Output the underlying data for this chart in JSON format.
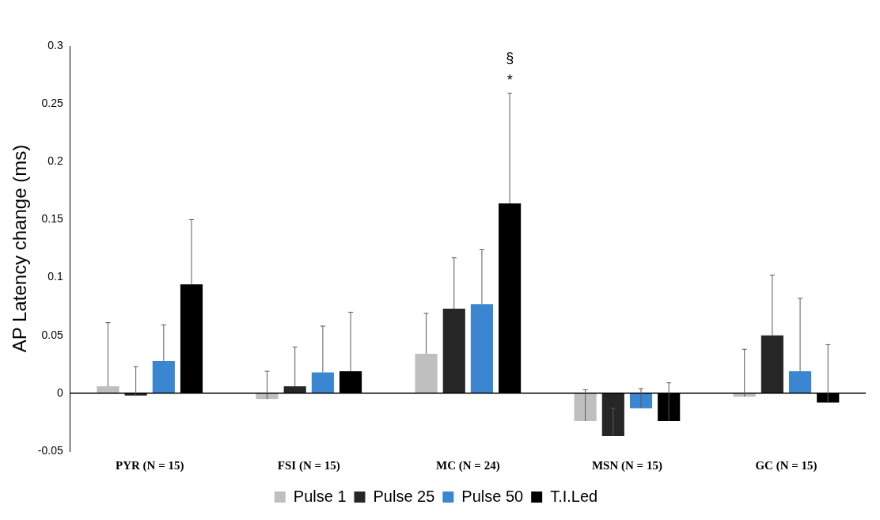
{
  "chart_data": {
    "type": "bar",
    "ylabel": "AP Latency change (ms)",
    "categories": [
      "PYR (N = 15)",
      "FSI (N = 15)",
      "MC (N = 24)",
      "MSN (N = 15)",
      "GC (N = 15)"
    ],
    "series": [
      {
        "name": "Pulse 1",
        "color": "#bfbfbf",
        "values": [
          0.006,
          -0.005,
          0.034,
          -0.024,
          -0.003
        ],
        "errors": [
          [
            0.006,
            0.061
          ],
          [
            -0.005,
            0.019
          ],
          [
            0.034,
            0.069
          ],
          [
            -0.024,
            0.003
          ],
          [
            -0.003,
            0.038
          ]
        ]
      },
      {
        "name": "Pulse 25",
        "color": "#262626",
        "values": [
          -0.002,
          0.006,
          0.073,
          -0.037,
          0.05
        ],
        "errors": [
          [
            -0.002,
            0.023
          ],
          [
            0.006,
            0.04
          ],
          [
            0.073,
            0.117
          ],
          [
            -0.037,
            -0.013
          ],
          [
            0.05,
            0.102
          ]
        ]
      },
      {
        "name": "Pulse 50",
        "color": "#3a86d0",
        "values": [
          0.028,
          0.018,
          0.077,
          -0.013,
          0.019
        ],
        "errors": [
          [
            0.028,
            0.059
          ],
          [
            0.018,
            0.058
          ],
          [
            0.077,
            0.124
          ],
          [
            -0.013,
            0.004
          ],
          [
            0.019,
            0.082
          ]
        ]
      },
      {
        "name": "T.I.Led",
        "color": "#000000",
        "values": [
          0.094,
          0.019,
          0.164,
          -0.024,
          -0.008
        ],
        "errors": [
          [
            0.094,
            0.15
          ],
          [
            0.019,
            0.07
          ],
          [
            0.164,
            0.259
          ],
          [
            -0.024,
            0.009
          ],
          [
            -0.008,
            0.042
          ]
        ]
      }
    ],
    "ylim": [
      -0.05,
      0.3
    ],
    "yticks": [
      -0.05,
      0,
      0.05,
      0.1,
      0.15,
      0.2,
      0.25,
      0.3
    ],
    "annotations": [
      "§",
      "*"
    ],
    "legend": "bottom"
  }
}
